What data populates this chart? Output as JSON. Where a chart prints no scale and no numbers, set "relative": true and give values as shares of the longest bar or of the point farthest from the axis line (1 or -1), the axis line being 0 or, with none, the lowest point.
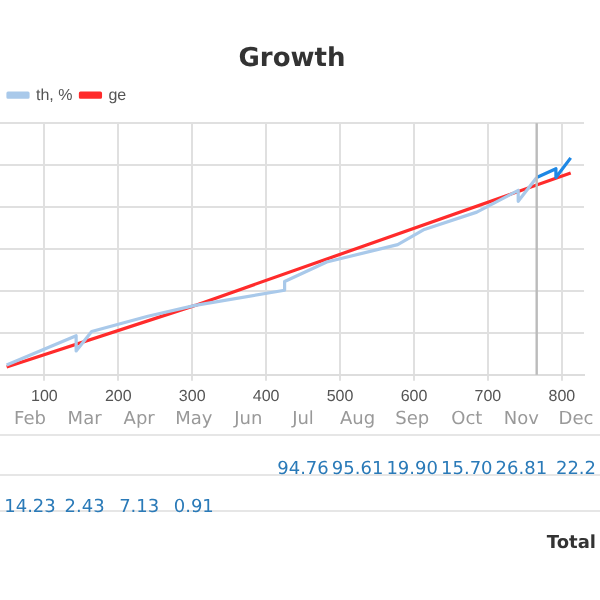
{
  "chart_data": {
    "type": "line",
    "title": "Growth",
    "relative": true,
    "grid": true,
    "legend": "top left",
    "marker": "none",
    "line_style": "solid",
    "xlim": [
      40,
      830
    ],
    "xticks": [
      100,
      200,
      300,
      400,
      500,
      600,
      700,
      800
    ],
    "series": [
      {
        "name": "th, %",
        "color": "#a9c9ea",
        "x": [
          49,
          143,
          143,
          164,
          240,
          304,
          425,
          425,
          482,
          578,
          614,
          685,
          741,
          741,
          766
        ],
        "values": [
          0.045,
          0.18,
          0.11,
          0.2,
          0.27,
          0.32,
          0.39,
          0.43,
          0.52,
          0.6,
          0.67,
          0.75,
          0.85,
          0.8,
          0.91
        ]
      },
      {
        "color": "#1e88e5",
        "x": [
          766,
          792,
          792,
          812
        ],
        "values": [
          0.91,
          0.95,
          0.91,
          1
        ]
      },
      {
        "name": "ge",
        "color": "#ff2b2b",
        "x": [
          49,
          304,
          812
        ],
        "values": [
          0.036,
          0.32,
          0.93
        ]
      }
    ],
    "ref_lines": [
      {
        "axis": "x",
        "value": 766,
        "color": "#bbbbbb"
      }
    ],
    "annotations": [
      "Feb",
      "Mar",
      "Apr",
      "May",
      "Jun",
      "Jul",
      "Aug",
      "Sep",
      "Oct",
      "Nov",
      "Dec",
      "94.76",
      "95.61",
      "19.90",
      "15.70",
      "26.81",
      "22.2",
      "14.23",
      "2.43",
      "7.13",
      "0.91",
      "Total"
    ]
  }
}
